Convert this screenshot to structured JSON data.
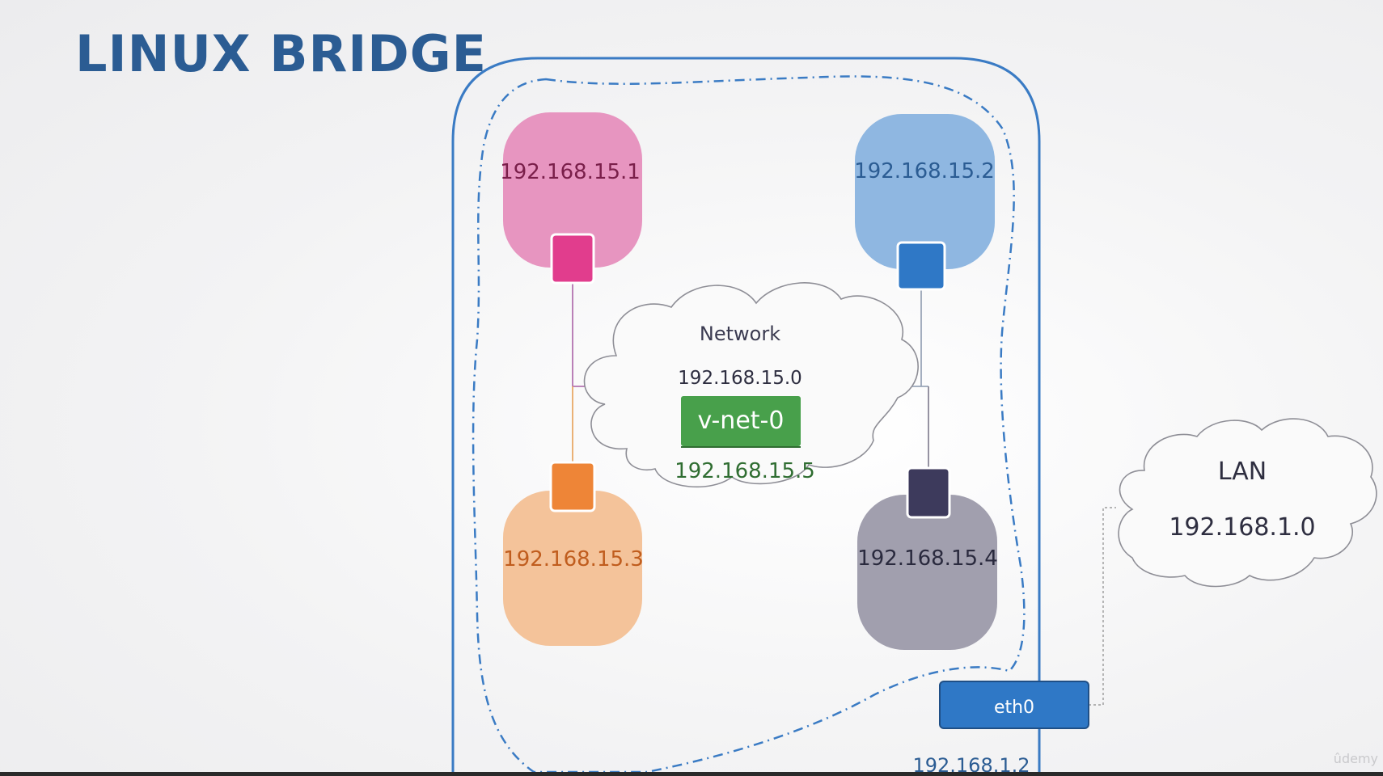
{
  "title": "LINUX BRIDGE",
  "namespaces": [
    {
      "id": "ns1",
      "ip": "192.168.15.1",
      "fill": "#e795c0",
      "port": "#e13d8d",
      "text_color": "#7a1f4a"
    },
    {
      "id": "ns2",
      "ip": "192.168.15.2",
      "fill": "#8fb7e1",
      "port": "#2f78c6",
      "text_color": "#2b5c93"
    },
    {
      "id": "ns3",
      "ip": "192.168.15.3",
      "fill": "#f4c39a",
      "port": "#ee8537",
      "text_color": "#c05d1e"
    },
    {
      "id": "ns4",
      "ip": "192.168.15.4",
      "fill": "#a19fae",
      "port": "#3d3a5c",
      "text_color": "#2a2a3e"
    }
  ],
  "network_cloud": {
    "label": "Network",
    "subnet": "192.168.15.0",
    "bridge_name": "v-net-0",
    "bridge_ip": "192.168.15.5",
    "bridge_color": "#48a04b"
  },
  "lan_cloud": {
    "label": "LAN",
    "subnet": "192.168.1.0"
  },
  "eth0": {
    "label": "eth0",
    "ip": "192.168.1.2",
    "color": "#2f78c6"
  },
  "host_border_color": "#3a7bc4",
  "watermark": "ûdemy"
}
